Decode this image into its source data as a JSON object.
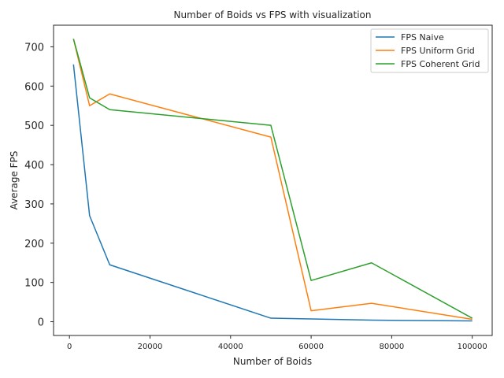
{
  "chart_data": {
    "type": "line",
    "title": "Number of Boids vs FPS with visualization",
    "xlabel": "Number of Boids",
    "ylabel": "Average FPS",
    "x": [
      1000,
      5000,
      10000,
      50000,
      60000,
      75000,
      100000
    ],
    "xlim": [
      -3950,
      104950
    ],
    "ylim": [
      -35,
      755
    ],
    "xticks": [
      0,
      20000,
      40000,
      60000,
      80000,
      100000
    ],
    "xtick_labels": [
      "0",
      "20000",
      "40000",
      "60000",
      "80000",
      "100000"
    ],
    "yticks": [
      0,
      100,
      200,
      300,
      400,
      500,
      600,
      700
    ],
    "ytick_labels": [
      "0",
      "100",
      "200",
      "300",
      "400",
      "500",
      "600",
      "700"
    ],
    "grid": false,
    "legend": "top-right",
    "series": [
      {
        "name": "FPS Naive",
        "color": "#1f77b4",
        "values": [
          655,
          270,
          145,
          9,
          7,
          4,
          2
        ]
      },
      {
        "name": "FPS Uniform Grid",
        "color": "#ff7f0e",
        "values": [
          720,
          550,
          580,
          470,
          28,
          47,
          6
        ]
      },
      {
        "name": "FPS Coherent Grid",
        "color": "#2ca02c",
        "values": [
          720,
          570,
          540,
          500,
          105,
          150,
          9
        ]
      }
    ]
  }
}
